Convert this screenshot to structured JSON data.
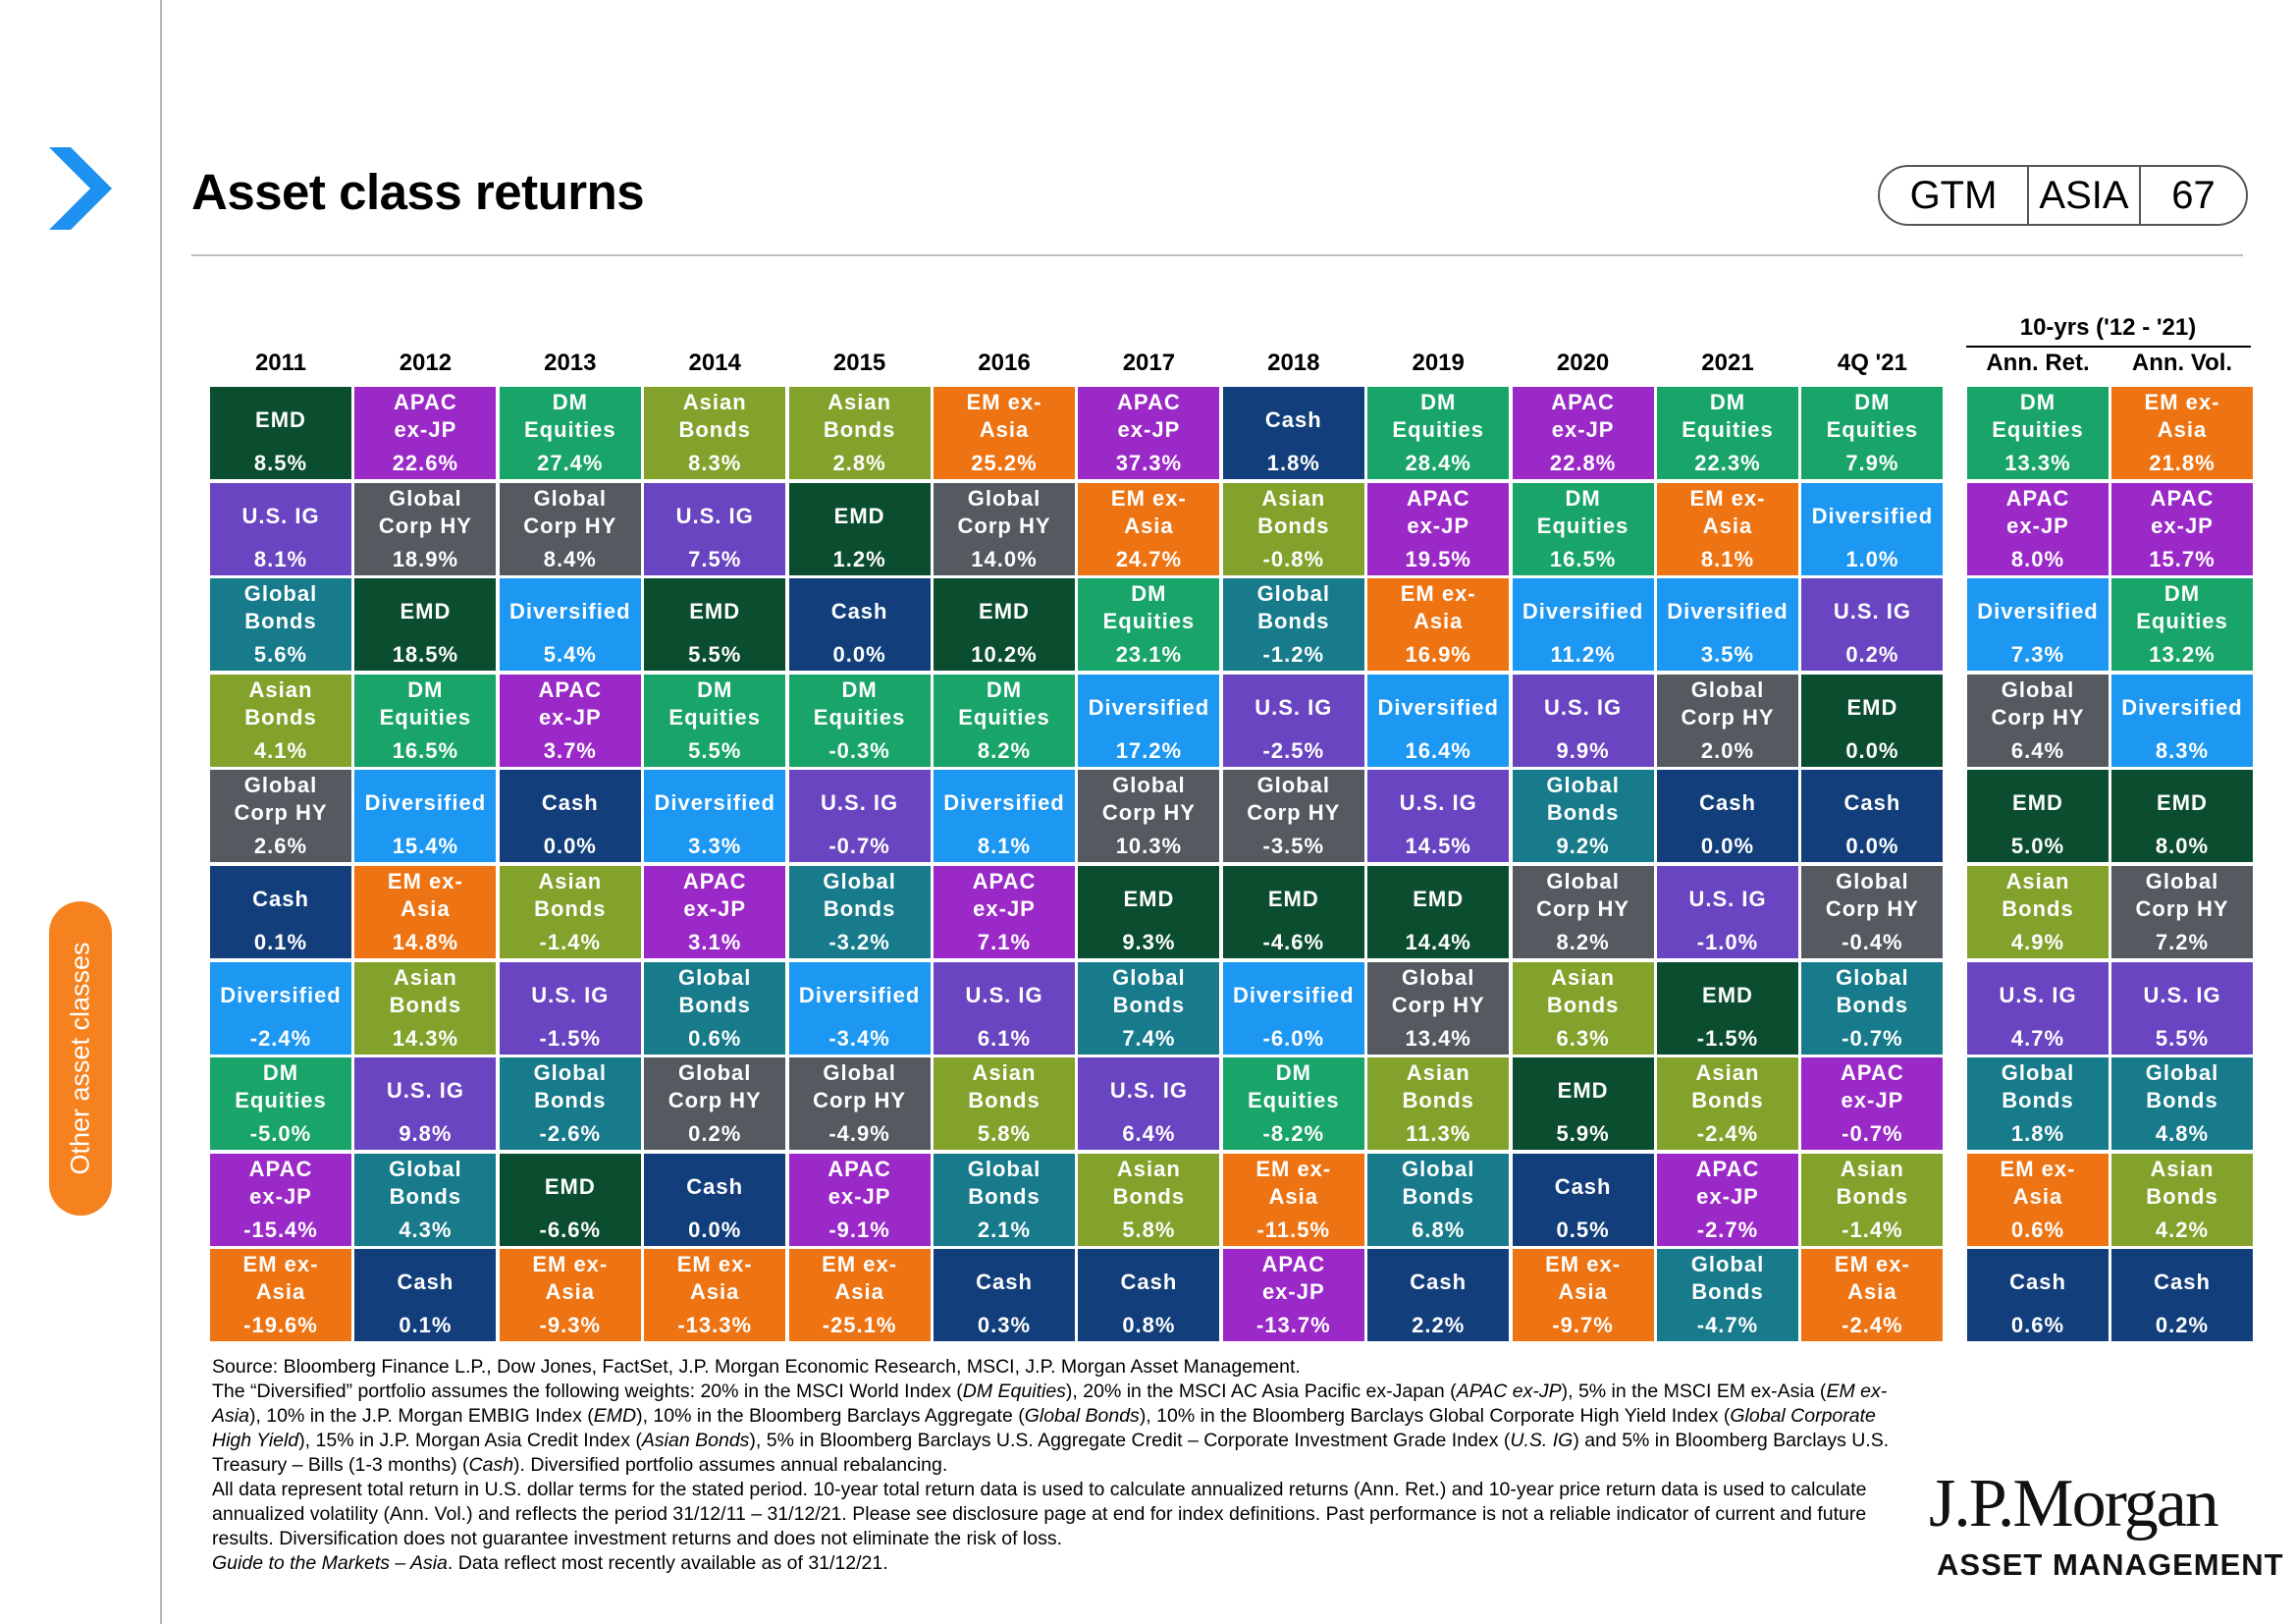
{
  "header": {
    "title": "Asset class returns",
    "badge": [
      "GTM",
      "ASIA",
      "67"
    ],
    "side_tab": "Other asset classes"
  },
  "colors": {
    "EMD": "#0b4d2f",
    "APAC ex-JP": "#9b29c8",
    "DM Equities": "#19a56a",
    "Asian Bonds": "#83a22c",
    "EM ex-Asia": "#ee7413",
    "Cash": "#123f7c",
    "U.S. IG": "#6a45c2",
    "Global Corp HY": "#545a60",
    "Global Bonds": "#177b8c",
    "Diversified": "#1c97f2",
    "accent_orange": "#f5821f",
    "accent_blue": "#1e90f0"
  },
  "chart_data": {
    "type": "table",
    "title": "Asset class returns",
    "columns": [
      "2011",
      "2012",
      "2013",
      "2014",
      "2015",
      "2016",
      "2017",
      "2018",
      "2019",
      "2020",
      "2021",
      "4Q '21"
    ],
    "ten_year": {
      "title": "10-yrs ('12 - '21)",
      "columns": [
        "Ann. Ret.",
        "Ann. Vol."
      ]
    },
    "data": [
      [
        [
          "EMD",
          "8.5%"
        ],
        [
          "U.S. IG",
          "8.1%"
        ],
        [
          "Global Bonds",
          "5.6%"
        ],
        [
          "Asian Bonds",
          "4.1%"
        ],
        [
          "Global Corp HY",
          "2.6%"
        ],
        [
          "Cash",
          "0.1%"
        ],
        [
          "Diversified",
          "-2.4%"
        ],
        [
          "DM Equities",
          "-5.0%"
        ],
        [
          "APAC ex-JP",
          "-15.4%"
        ],
        [
          "EM ex-Asia",
          "-19.6%"
        ]
      ],
      [
        [
          "APAC ex-JP",
          "22.6%"
        ],
        [
          "Global Corp HY",
          "18.9%"
        ],
        [
          "EMD",
          "18.5%"
        ],
        [
          "DM Equities",
          "16.5%"
        ],
        [
          "Diversified",
          "15.4%"
        ],
        [
          "EM ex-Asia",
          "14.8%"
        ],
        [
          "Asian Bonds",
          "14.3%"
        ],
        [
          "U.S. IG",
          "9.8%"
        ],
        [
          "Global Bonds",
          "4.3%"
        ],
        [
          "Cash",
          "0.1%"
        ]
      ],
      [
        [
          "DM Equities",
          "27.4%"
        ],
        [
          "Global Corp HY",
          "8.4%"
        ],
        [
          "Diversified",
          "5.4%"
        ],
        [
          "APAC ex-JP",
          "3.7%"
        ],
        [
          "Cash",
          "0.0%"
        ],
        [
          "Asian Bonds",
          "-1.4%"
        ],
        [
          "U.S. IG",
          "-1.5%"
        ],
        [
          "Global Bonds",
          "-2.6%"
        ],
        [
          "EMD",
          "-6.6%"
        ],
        [
          "EM ex-Asia",
          "-9.3%"
        ]
      ],
      [
        [
          "Asian Bonds",
          "8.3%"
        ],
        [
          "U.S. IG",
          "7.5%"
        ],
        [
          "EMD",
          "5.5%"
        ],
        [
          "DM Equities",
          "5.5%"
        ],
        [
          "Diversified",
          "3.3%"
        ],
        [
          "APAC ex-JP",
          "3.1%"
        ],
        [
          "Global Bonds",
          "0.6%"
        ],
        [
          "Global Corp HY",
          "0.2%"
        ],
        [
          "Cash",
          "0.0%"
        ],
        [
          "EM ex-Asia",
          "-13.3%"
        ]
      ],
      [
        [
          "Asian Bonds",
          "2.8%"
        ],
        [
          "EMD",
          "1.2%"
        ],
        [
          "Cash",
          "0.0%"
        ],
        [
          "DM Equities",
          "-0.3%"
        ],
        [
          "U.S. IG",
          "-0.7%"
        ],
        [
          "Global Bonds",
          "-3.2%"
        ],
        [
          "Diversified",
          "-3.4%"
        ],
        [
          "Global Corp HY",
          "-4.9%"
        ],
        [
          "APAC ex-JP",
          "-9.1%"
        ],
        [
          "EM ex-Asia",
          "-25.1%"
        ]
      ],
      [
        [
          "EM ex-Asia",
          "25.2%"
        ],
        [
          "Global Corp HY",
          "14.0%"
        ],
        [
          "EMD",
          "10.2%"
        ],
        [
          "DM Equities",
          "8.2%"
        ],
        [
          "Diversified",
          "8.1%"
        ],
        [
          "APAC ex-JP",
          "7.1%"
        ],
        [
          "U.S. IG",
          "6.1%"
        ],
        [
          "Asian Bonds",
          "5.8%"
        ],
        [
          "Global Bonds",
          "2.1%"
        ],
        [
          "Cash",
          "0.3%"
        ]
      ],
      [
        [
          "APAC ex-JP",
          "37.3%"
        ],
        [
          "EM ex-Asia",
          "24.7%"
        ],
        [
          "DM Equities",
          "23.1%"
        ],
        [
          "Diversified",
          "17.2%"
        ],
        [
          "Global Corp HY",
          "10.3%"
        ],
        [
          "EMD",
          "9.3%"
        ],
        [
          "Global Bonds",
          "7.4%"
        ],
        [
          "U.S. IG",
          "6.4%"
        ],
        [
          "Asian Bonds",
          "5.8%"
        ],
        [
          "Cash",
          "0.8%"
        ]
      ],
      [
        [
          "Cash",
          "1.8%"
        ],
        [
          "Asian Bonds",
          "-0.8%"
        ],
        [
          "Global Bonds",
          "-1.2%"
        ],
        [
          "U.S. IG",
          "-2.5%"
        ],
        [
          "Global Corp HY",
          "-3.5%"
        ],
        [
          "EMD",
          "-4.6%"
        ],
        [
          "Diversified",
          "-6.0%"
        ],
        [
          "DM Equities",
          "-8.2%"
        ],
        [
          "EM ex-Asia",
          "-11.5%"
        ],
        [
          "APAC ex-JP",
          "-13.7%"
        ]
      ],
      [
        [
          "DM Equities",
          "28.4%"
        ],
        [
          "APAC ex-JP",
          "19.5%"
        ],
        [
          "EM ex-Asia",
          "16.9%"
        ],
        [
          "Diversified",
          "16.4%"
        ],
        [
          "U.S. IG",
          "14.5%"
        ],
        [
          "EMD",
          "14.4%"
        ],
        [
          "Global Corp HY",
          "13.4%"
        ],
        [
          "Asian Bonds",
          "11.3%"
        ],
        [
          "Global Bonds",
          "6.8%"
        ],
        [
          "Cash",
          "2.2%"
        ]
      ],
      [
        [
          "APAC ex-JP",
          "22.8%"
        ],
        [
          "DM Equities",
          "16.5%"
        ],
        [
          "Diversified",
          "11.2%"
        ],
        [
          "U.S. IG",
          "9.9%"
        ],
        [
          "Global Bonds",
          "9.2%"
        ],
        [
          "Global Corp HY",
          "8.2%"
        ],
        [
          "Asian Bonds",
          "6.3%"
        ],
        [
          "EMD",
          "5.9%"
        ],
        [
          "Cash",
          "0.5%"
        ],
        [
          "EM ex-Asia",
          "-9.7%"
        ]
      ],
      [
        [
          "DM Equities",
          "22.3%"
        ],
        [
          "EM ex-Asia",
          "8.1%"
        ],
        [
          "Diversified",
          "3.5%"
        ],
        [
          "Global Corp HY",
          "2.0%"
        ],
        [
          "Cash",
          "0.0%"
        ],
        [
          "U.S. IG",
          "-1.0%"
        ],
        [
          "EMD",
          "-1.5%"
        ],
        [
          "Asian Bonds",
          "-2.4%"
        ],
        [
          "APAC ex-JP",
          "-2.7%"
        ],
        [
          "Global Bonds",
          "-4.7%"
        ]
      ],
      [
        [
          "DM Equities",
          "7.9%"
        ],
        [
          "Diversified",
          "1.0%"
        ],
        [
          "U.S. IG",
          "0.2%"
        ],
        [
          "EMD",
          "0.0%"
        ],
        [
          "Cash",
          "0.0%"
        ],
        [
          "Global Corp HY",
          "-0.4%"
        ],
        [
          "Global Bonds",
          "-0.7%"
        ],
        [
          "APAC ex-JP",
          "-0.7%"
        ],
        [
          "Asian Bonds",
          "-1.4%"
        ],
        [
          "EM ex-Asia",
          "-2.4%"
        ]
      ],
      [
        [
          "DM Equities",
          "13.3%"
        ],
        [
          "APAC ex-JP",
          "8.0%"
        ],
        [
          "Diversified",
          "7.3%"
        ],
        [
          "Global Corp HY",
          "6.4%"
        ],
        [
          "EMD",
          "5.0%"
        ],
        [
          "Asian Bonds",
          "4.9%"
        ],
        [
          "U.S. IG",
          "4.7%"
        ],
        [
          "Global Bonds",
          "1.8%"
        ],
        [
          "EM ex-Asia",
          "0.6%"
        ],
        [
          "Cash",
          "0.6%"
        ]
      ],
      [
        [
          "EM ex-Asia",
          "21.8%"
        ],
        [
          "APAC ex-JP",
          "15.7%"
        ],
        [
          "DM Equities",
          "13.2%"
        ],
        [
          "Diversified",
          "8.3%"
        ],
        [
          "EMD",
          "8.0%"
        ],
        [
          "Global Corp HY",
          "7.2%"
        ],
        [
          "U.S. IG",
          "5.5%"
        ],
        [
          "Global Bonds",
          "4.8%"
        ],
        [
          "Asian Bonds",
          "4.2%"
        ],
        [
          "Cash",
          "0.2%"
        ]
      ]
    ]
  },
  "notes": {
    "source": "Source: Bloomberg Finance L.P., Dow Jones, FactSet, J.P. Morgan Economic Research, MSCI, J.P. Morgan Asset Management.",
    "diversified": [
      {
        "t": "The “Diversified” portfolio assumes the following weights: 20% in the MSCI World Index ("
      },
      {
        "t": "DM Equities",
        "i": true
      },
      {
        "t": "), 20% in the MSCI AC Asia Pacific ex-Japan ("
      },
      {
        "t": "APAC ex-JP",
        "i": true
      },
      {
        "t": "), 5% in the MSCI EM ex-Asia ("
      },
      {
        "t": "EM ex-Asia",
        "i": true
      },
      {
        "t": "), 10% in the J.P. Morgan EMBIG Index ("
      },
      {
        "t": "EMD",
        "i": true
      },
      {
        "t": "), 10% in the Bloomberg Barclays Aggregate ("
      },
      {
        "t": "Global Bonds",
        "i": true
      },
      {
        "t": "), 10% in the Bloomberg Barclays Global Corporate High Yield Index ("
      },
      {
        "t": "Global Corporate High Yield",
        "i": true
      },
      {
        "t": "), 15% in J.P. Morgan Asia Credit Index ("
      },
      {
        "t": "Asian Bonds",
        "i": true
      },
      {
        "t": "), 5% in Bloomberg Barclays U.S. Aggregate Credit – Corporate Investment Grade Index ("
      },
      {
        "t": "U.S. IG",
        "i": true
      },
      {
        "t": ") and 5% in Bloomberg Barclays U.S. Treasury – Bills (1-3 months) ("
      },
      {
        "t": "Cash",
        "i": true
      },
      {
        "t": "). Diversified portfolio assumes annual rebalancing."
      }
    ],
    "total_return": "All data represent total return in U.S. dollar terms for the stated period. 10-year total return data is used to calculate annualized returns (Ann. Ret.) and 10-year price return data is used to calculate annualized volatility (Ann. Vol.) and reflects the period 31/12/11 – 31/12/21. Please see disclosure page at end for index definitions. Past performance is not a reliable indicator of current and future results. Diversification does not guarantee investment returns and does not eliminate the risk of loss.",
    "guide": "Guide to the Markets – Asia",
    "guide_tail": ". Data reflect most recently available as of 31/12/21."
  },
  "logo": {
    "line1": "J.P.Morgan",
    "line2": "ASSET MANAGEMENT"
  }
}
